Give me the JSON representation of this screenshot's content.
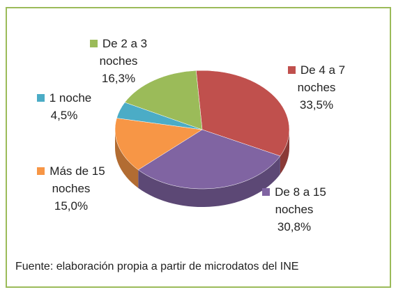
{
  "chart_data": {
    "type": "pie",
    "categories": [
      "De 4 a 7 noches",
      "De 8 a 15 noches",
      "Más de 15 noches",
      "1 noche",
      "De 2 a 3 noches"
    ],
    "values": [
      33.5,
      30.8,
      15.0,
      4.5,
      16.3
    ],
    "value_labels": [
      "33,5%",
      "30,8%",
      "15,0%",
      "4,5%",
      "16,3%"
    ],
    "colors": [
      "#c0504d",
      "#8064a2",
      "#f79646",
      "#4bacc6",
      "#9bbb59"
    ],
    "note": "Fuente: elaboración propia a partir de microdatos del INE"
  }
}
